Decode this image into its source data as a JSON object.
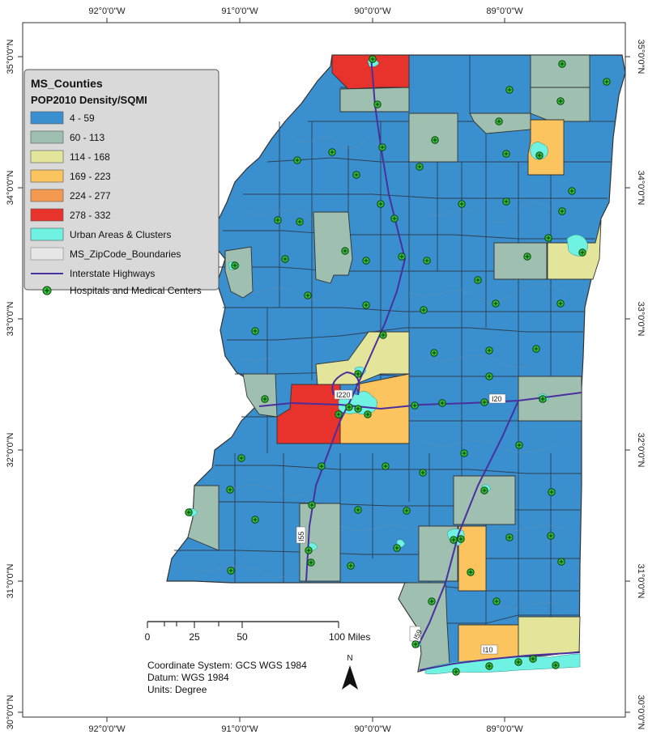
{
  "frame": {
    "top_labels": [
      "92°0'0\"W",
      "91°0'0\"W",
      "90°0'0\"W",
      "89°0'0\"W"
    ],
    "bottom_labels": [
      "92°0'0\"W",
      "91°0'0\"W",
      "90°0'0\"W",
      "89°0'0\"W"
    ],
    "left_labels": [
      "35°0'0\"N",
      "34°0'0\"N",
      "33°0'0\"N",
      "32°0'0\"N",
      "31°0'0\"N",
      "30°0'0\"N"
    ],
    "right_labels": [
      "35°0'0\"N",
      "34°0'0\"N",
      "33°0'0\"N",
      "32°0'0\"N",
      "31°0'0\"N",
      "30°0'0\"N"
    ]
  },
  "legend": {
    "title": "MS_Counties",
    "subtitle": "POP2010 Density/SQMI",
    "classes": [
      {
        "label": "4 - 59",
        "color": "#3a8fce"
      },
      {
        "label": "60 - 113",
        "color": "#9fc0b0"
      },
      {
        "label": "114 - 168",
        "color": "#e3e69a"
      },
      {
        "label": "169 - 223",
        "color": "#fbc45e"
      },
      {
        "label": "224 - 277",
        "color": "#f49a50"
      },
      {
        "label": "278 - 332",
        "color": "#e8332c"
      }
    ],
    "urban_label": "Urban Areas & Clusters",
    "urban_color": "#6ff2e2",
    "zip_label": "MS_ZipCode_Boundaries",
    "highway_label": "Interstate Highways",
    "highway_color": "#4a2f9e",
    "hospital_label": "Hospitals and Medical Centers",
    "hospital_color": "#36c43a"
  },
  "scale": {
    "ticks": [
      "0",
      "25",
      "50",
      "100 Miles"
    ]
  },
  "info": {
    "line1": "Coordinate System: GCS WGS 1984",
    "line2": "Datum: WGS 1984",
    "line3": "Units: Degree"
  },
  "north": {
    "label": "N"
  },
  "highways": {
    "i220": "I220",
    "i20": "I20",
    "i55": "I55",
    "i59": "I59",
    "i10": "I10"
  }
}
